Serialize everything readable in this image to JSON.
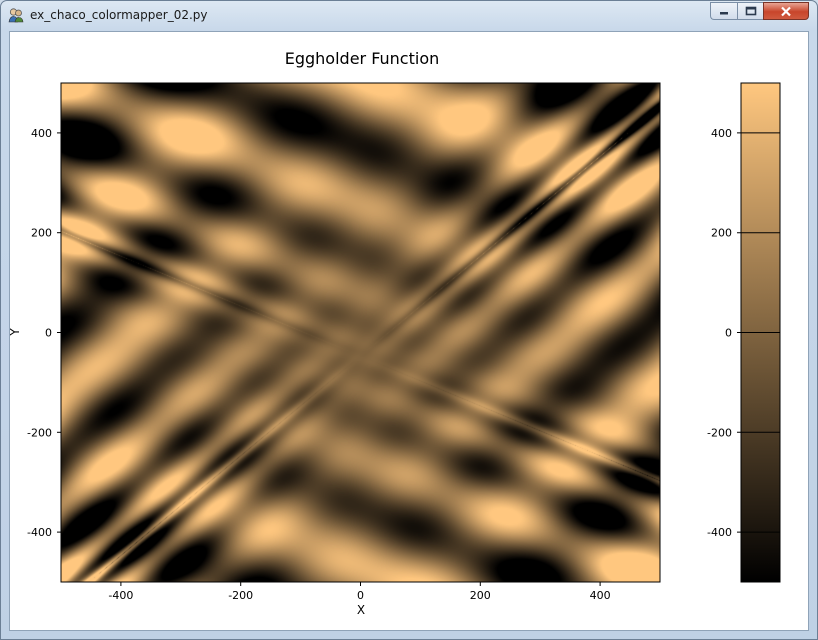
{
  "window": {
    "title": "ex_chaco_colormapper_02.py",
    "icon": "python-app-icon",
    "buttons": [
      "minimize-icon",
      "maximize-icon",
      "close-icon"
    ]
  },
  "chart_data": {
    "type": "heatmap",
    "title": "Eggholder Function",
    "xlabel": "X",
    "ylabel": "Y",
    "xlim": [
      -500,
      500
    ],
    "ylim": [
      -500,
      500
    ],
    "xticks": [
      -400,
      -200,
      0,
      200,
      400
    ],
    "yticks": [
      -400,
      -200,
      0,
      200,
      400
    ],
    "x_tick_labels": [
      "-400",
      "-200",
      "0",
      "200",
      "400"
    ],
    "y_tick_labels": [
      "-400",
      "-200",
      "0",
      "200",
      "400"
    ],
    "function": "z = -(y+47)*sin(sqrt(|x/2+y+47|)) - x*sin(sqrt(|x-(y+47)|))",
    "colormap": "copper",
    "colormap_stops": [
      "#000000",
      "#ffc77f"
    ],
    "colorbar": {
      "range": [
        -500,
        500
      ],
      "ticks": [
        -400,
        -200,
        0,
        200,
        400
      ],
      "tick_labels": [
        "-400",
        "-200",
        "0",
        "200",
        "400"
      ]
    },
    "grid": false,
    "legend": "none"
  }
}
